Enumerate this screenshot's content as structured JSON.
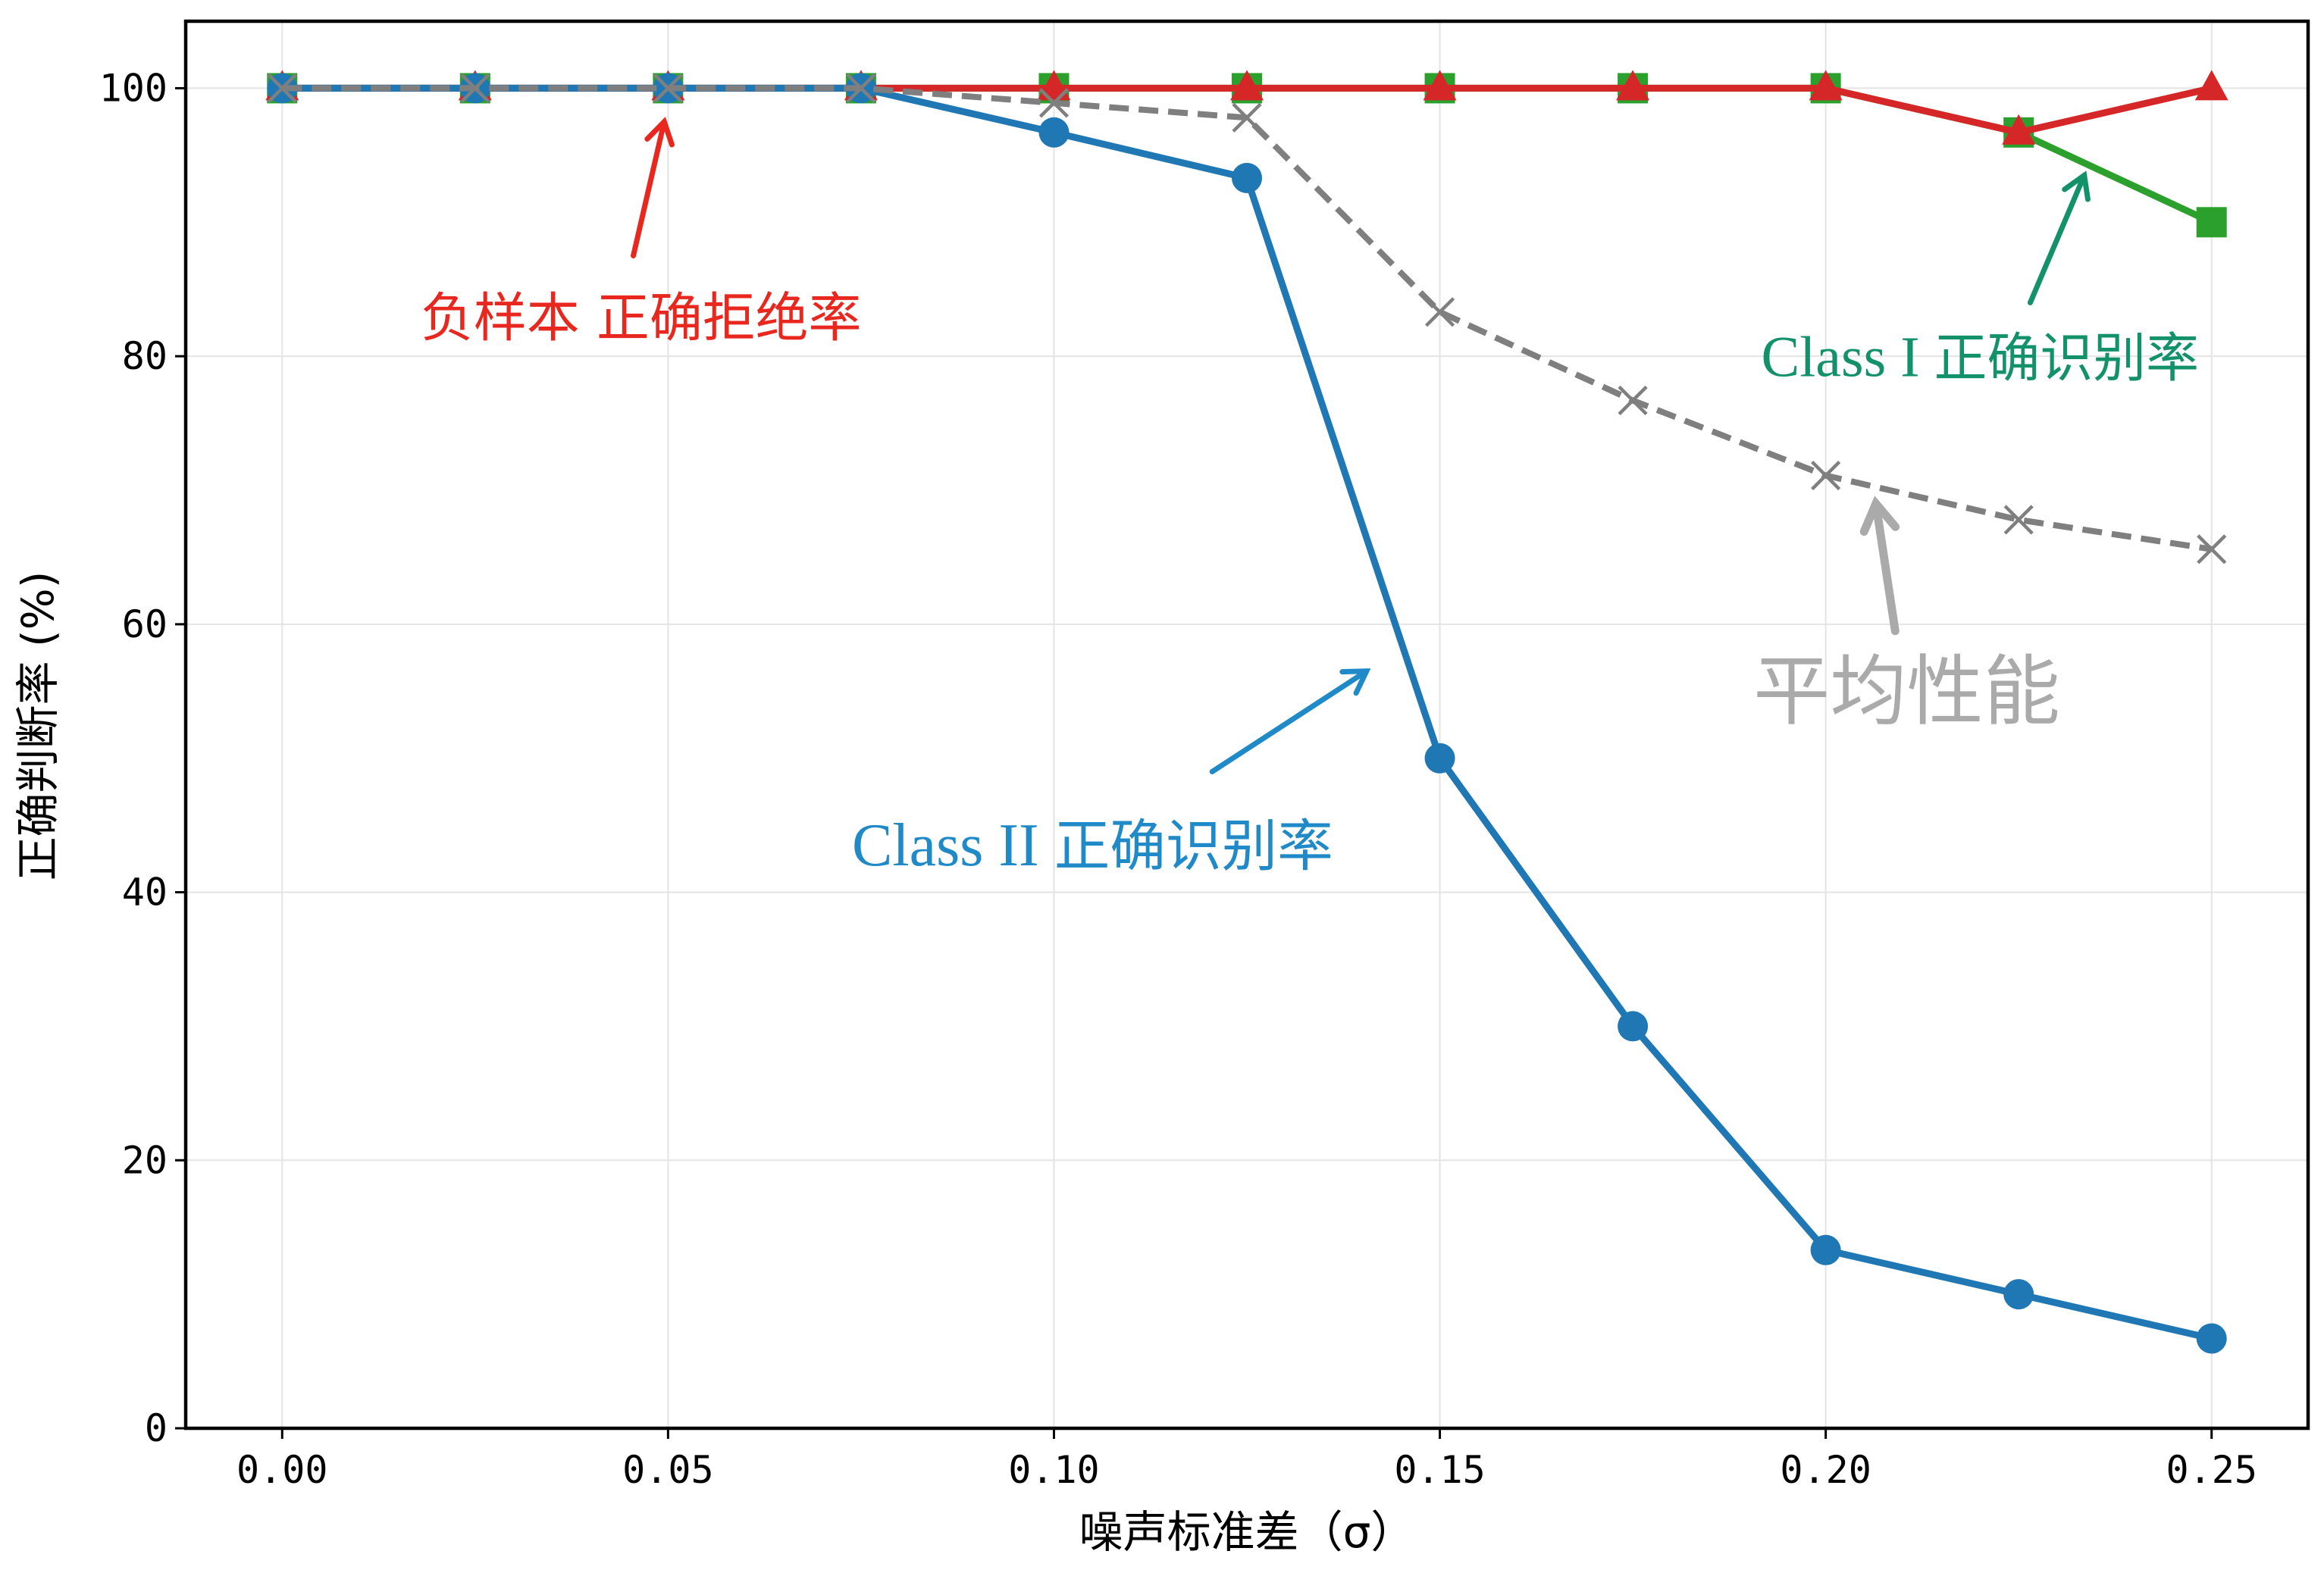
{
  "chart_data": {
    "type": "line",
    "xlabel": "噪声标准差（σ）",
    "ylabel": "正确判断率 (%)",
    "xlim": [
      -0.0125,
      0.2625
    ],
    "ylim": [
      0,
      105
    ],
    "xticks": [
      "0.00",
      "0.05",
      "0.10",
      "0.15",
      "0.20",
      "0.25"
    ],
    "yticks": [
      "0",
      "20",
      "40",
      "60",
      "80",
      "100"
    ],
    "grid": true,
    "legend": "none",
    "x": [
      0.0,
      0.025,
      0.05,
      0.075,
      0.1,
      0.125,
      0.15,
      0.175,
      0.2,
      0.225,
      0.25
    ],
    "series": [
      {
        "name": "Class I 正确识别率",
        "color": "#2ca02c",
        "marker": "square",
        "style": "solid",
        "values": [
          100,
          100,
          100,
          100,
          100,
          100,
          100,
          100,
          100,
          96.7,
          90
        ]
      },
      {
        "name": "负样本 正确拒绝率",
        "color": "#d62728",
        "marker": "triangle",
        "style": "solid",
        "values": [
          100,
          100,
          100,
          100,
          100,
          100,
          100,
          100,
          100,
          96.7,
          100
        ]
      },
      {
        "name": "Class II 正确识别率",
        "color": "#1f77b4",
        "marker": "circle",
        "style": "solid",
        "values": [
          100,
          100,
          100,
          100,
          96.7,
          93.3,
          50,
          30,
          13.3,
          10,
          6.7
        ]
      },
      {
        "name": "平均性能",
        "color": "#7f7f7f",
        "marker": "x",
        "style": "dashed",
        "values": [
          100,
          100,
          100,
          100,
          98.9,
          97.8,
          83.3,
          76.7,
          71.1,
          67.8,
          65.6
        ]
      }
    ],
    "annotations": [
      {
        "text_cn": "负样本 正确拒绝率",
        "text_en": "",
        "color": "#e8271f",
        "text_at": [
          0.0465,
          81.5
        ],
        "arrow_from": [
          0.0455,
          87.5
        ],
        "arrow_to": [
          0.0495,
          97.5
        ]
      },
      {
        "text_cn": "正确识别率",
        "text_en": "Class I",
        "color": "#13926a",
        "text_at": [
          0.22,
          78.5
        ],
        "arrow_from": [
          0.2265,
          84
        ],
        "arrow_to": [
          0.2335,
          93.5
        ]
      },
      {
        "text_cn": "平均性能",
        "text_en": "",
        "color": "#aaaaaa",
        "text_at": [
          0.2105,
          53
        ],
        "arrow_from": [
          0.209,
          59.5
        ],
        "arrow_to": [
          0.2065,
          69
        ]
      },
      {
        "text_cn": "正确识别率",
        "text_en": "Class II",
        "color": "#1f8ac7",
        "text_at": [
          0.105,
          42
        ],
        "arrow_from": [
          0.1205,
          49
        ],
        "arrow_to": [
          0.1405,
          56.5
        ]
      }
    ]
  }
}
